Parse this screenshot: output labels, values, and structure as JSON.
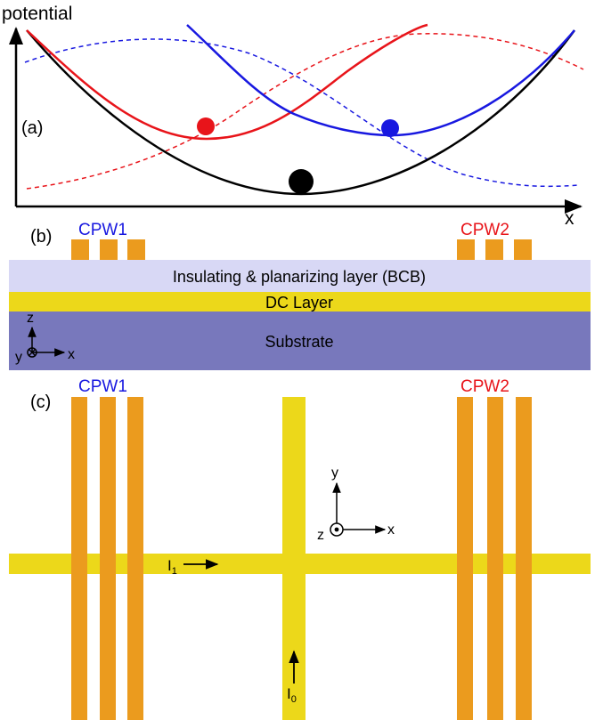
{
  "panel_a": {
    "y_axis_label": "potential",
    "x_axis_label": "x",
    "panel_label": "(a)",
    "curves": [
      {
        "name": "black",
        "color": "#000000",
        "style": "solid"
      },
      {
        "name": "red",
        "color": "#e8141a",
        "style": "solid"
      },
      {
        "name": "blue",
        "color": "#1818e0",
        "style": "solid"
      },
      {
        "name": "red-dashed",
        "color": "#e8141a",
        "style": "dashed"
      },
      {
        "name": "blue-dashed",
        "color": "#1818e0",
        "style": "dashed"
      }
    ],
    "particles": [
      {
        "color": "#e8141a"
      },
      {
        "color": "#1818e0"
      },
      {
        "color": "#000000"
      }
    ]
  },
  "panel_b": {
    "panel_label": "(b)",
    "cpw1_label": "CPW1",
    "cpw2_label": "CPW2",
    "layers": {
      "insulating": "Insulating & planarizing layer (BCB)",
      "dc": "DC Layer",
      "substrate": "Substrate"
    },
    "axes": {
      "z": "z",
      "y": "y",
      "x": "x"
    },
    "colors": {
      "insulating": "#d8d8f5",
      "dc": "#ecd81a",
      "substrate": "#7878bc",
      "cpw": "#eb9b1e",
      "cpw1_text": "#1818e0",
      "cpw2_text": "#e8141a"
    }
  },
  "panel_c": {
    "panel_label": "(c)",
    "cpw1_label": "CPW1",
    "cpw2_label": "CPW2",
    "current_1": "I",
    "current_1_sub": "1",
    "current_0": "I",
    "current_0_sub": "0",
    "axes": {
      "y": "y",
      "z": "z",
      "x": "x"
    }
  }
}
